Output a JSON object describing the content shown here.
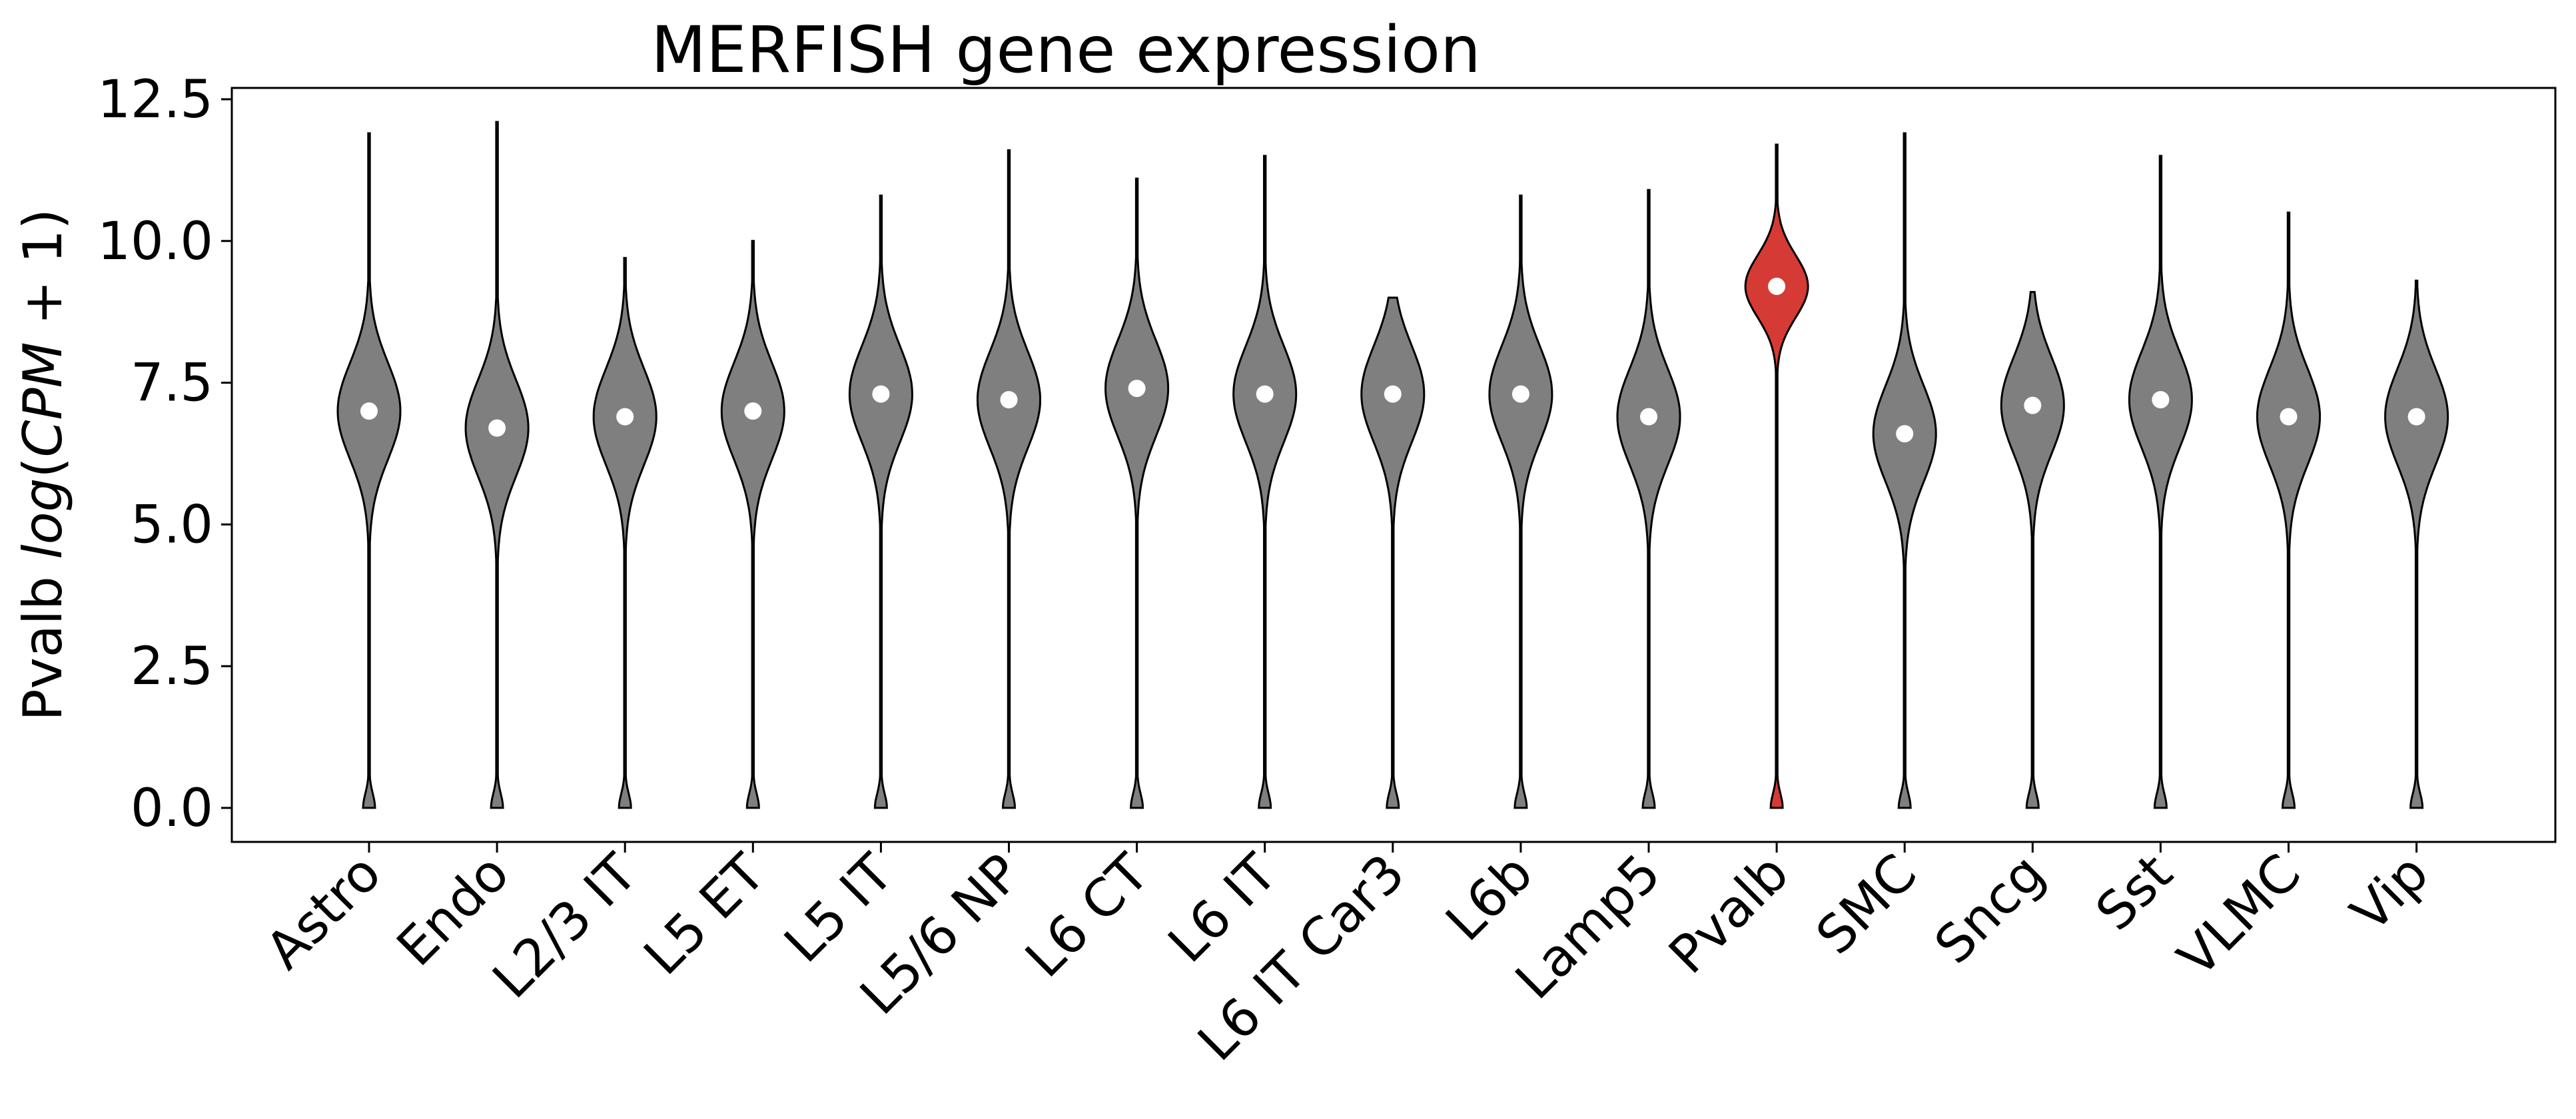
{
  "chart_data": {
    "type": "violin",
    "title": "MERFISH gene expression",
    "ylabel": {
      "prefix": "Pvalb ",
      "italic": "log",
      "mid": "(",
      "italic2": "CPM",
      "suffix": " + 1)"
    },
    "xlabel": "",
    "ylim": [
      -0.6,
      12.7
    ],
    "yticks": [
      "0.0",
      "2.5",
      "5.0",
      "7.5",
      "10.0",
      "12.5"
    ],
    "grid": false,
    "colors": {
      "default": "#7f7f7f",
      "highlight": "#d63a34",
      "edge": "#000000",
      "median": "#ffffff"
    },
    "categories": [
      "Astro",
      "Endo",
      "L2/3 IT",
      "L5 ET",
      "L5 IT",
      "L5/6 NP",
      "L6 CT",
      "L6 IT",
      "L6 IT Car3",
      "L6b",
      "Lamp5",
      "Pvalb",
      "SMC",
      "Sncg",
      "Sst",
      "VLMC",
      "Vip"
    ],
    "violins": [
      {
        "category": "Astro",
        "max": 11.9,
        "median": 7.0,
        "highlight": false
      },
      {
        "category": "Endo",
        "max": 12.1,
        "median": 6.7,
        "highlight": false
      },
      {
        "category": "L2/3 IT",
        "max": 9.7,
        "median": 6.9,
        "highlight": false
      },
      {
        "category": "L5 ET",
        "max": 10.0,
        "median": 7.0,
        "highlight": false
      },
      {
        "category": "L5 IT",
        "max": 10.8,
        "median": 7.3,
        "highlight": false
      },
      {
        "category": "L5/6 NP",
        "max": 11.6,
        "median": 7.2,
        "highlight": false
      },
      {
        "category": "L6 CT",
        "max": 11.1,
        "median": 7.4,
        "highlight": false
      },
      {
        "category": "L6 IT",
        "max": 11.5,
        "median": 7.3,
        "highlight": false
      },
      {
        "category": "L6 IT Car3",
        "max": 9.0,
        "median": 7.3,
        "highlight": false
      },
      {
        "category": "L6b",
        "max": 10.8,
        "median": 7.3,
        "highlight": false
      },
      {
        "category": "Lamp5",
        "max": 10.9,
        "median": 6.9,
        "highlight": false
      },
      {
        "category": "Pvalb",
        "max": 11.7,
        "median": 9.2,
        "highlight": true
      },
      {
        "category": "SMC",
        "max": 11.9,
        "median": 6.6,
        "highlight": false
      },
      {
        "category": "Sncg",
        "max": 9.1,
        "median": 7.1,
        "highlight": false
      },
      {
        "category": "Sst",
        "max": 11.5,
        "median": 7.2,
        "highlight": false
      },
      {
        "category": "VLMC",
        "max": 10.5,
        "median": 6.9,
        "highlight": false
      },
      {
        "category": "Vip",
        "max": 9.3,
        "median": 6.9,
        "highlight": false
      }
    ]
  }
}
